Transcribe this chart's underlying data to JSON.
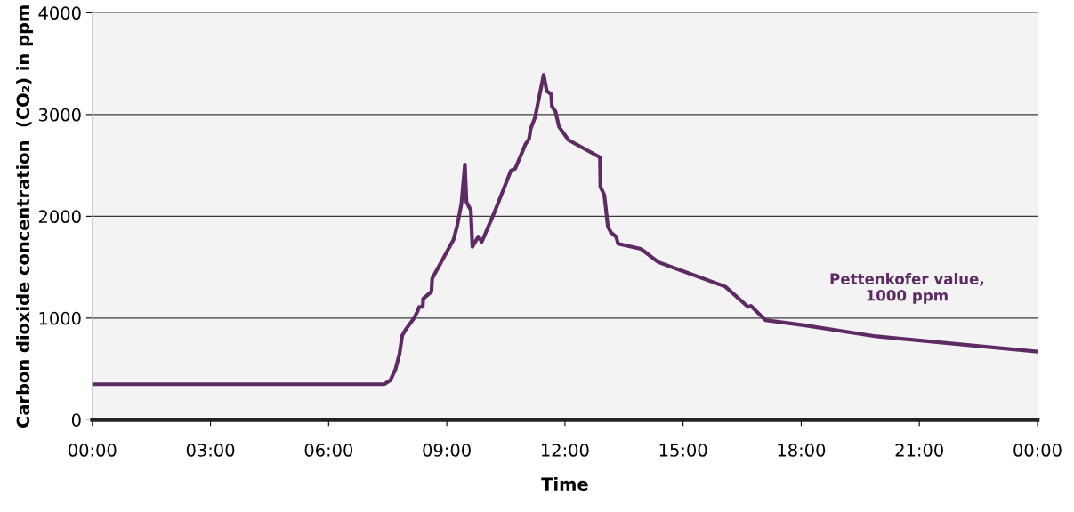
{
  "chart_data": {
    "type": "line",
    "xlabel": "Time",
    "ylabel": "Carbon dioxide concentration  (CO₂) in ppm",
    "xlim": [
      0,
      24
    ],
    "xticks": [
      {
        "value": 0,
        "label": "00:00"
      },
      {
        "value": 3,
        "label": "03:00"
      },
      {
        "value": 6,
        "label": "06:00"
      },
      {
        "value": 9,
        "label": "09:00"
      },
      {
        "value": 12,
        "label": "12:00"
      },
      {
        "value": 15,
        "label": "15:00"
      },
      {
        "value": 18,
        "label": "18:00"
      },
      {
        "value": 21,
        "label": "21:00"
      },
      {
        "value": 24,
        "label": "00:00"
      }
    ],
    "ylim": [
      0,
      4000
    ],
    "yticks": [
      0,
      1000,
      2000,
      3000,
      4000
    ],
    "grid": "y",
    "marker": "none",
    "line_style": "solid",
    "annotations": [
      "Pettenkofer value,\n1000 ppm"
    ],
    "series": [
      {
        "color": "#5e2a64",
        "x": [
          0,
          7.41,
          7.57,
          7.7,
          7.8,
          7.87,
          7.96,
          8.17,
          8.26,
          8.3,
          8.39,
          8.4,
          8.61,
          8.63,
          9.17,
          9.26,
          9.37,
          9.43,
          9.46,
          9.5,
          9.61,
          9.65,
          9.8,
          9.89,
          10.2,
          10.63,
          10.74,
          11.0,
          11.09,
          11.13,
          11.24,
          11.46,
          11.54,
          11.65,
          11.67,
          11.76,
          11.85,
          12.09,
          12.89,
          12.9,
          13.0,
          13.09,
          13.17,
          13.3,
          13.35,
          13.93,
          14.37,
          16.07,
          16.65,
          16.72,
          17.09,
          18.07,
          19.91,
          23.98
        ],
        "values": [
          350,
          350,
          390,
          500,
          650,
          830,
          890,
          1000,
          1070,
          1110,
          1110,
          1190,
          1260,
          1390,
          1770,
          1900,
          2120,
          2380,
          2510,
          2140,
          2060,
          1700,
          1800,
          1750,
          2030,
          2450,
          2470,
          2710,
          2760,
          2860,
          2970,
          3390,
          3230,
          3200,
          3080,
          3030,
          2880,
          2750,
          2580,
          2290,
          2210,
          1900,
          1840,
          1800,
          1730,
          1680,
          1550,
          1310,
          1110,
          1120,
          980,
          930,
          820,
          670
        ]
      }
    ]
  }
}
